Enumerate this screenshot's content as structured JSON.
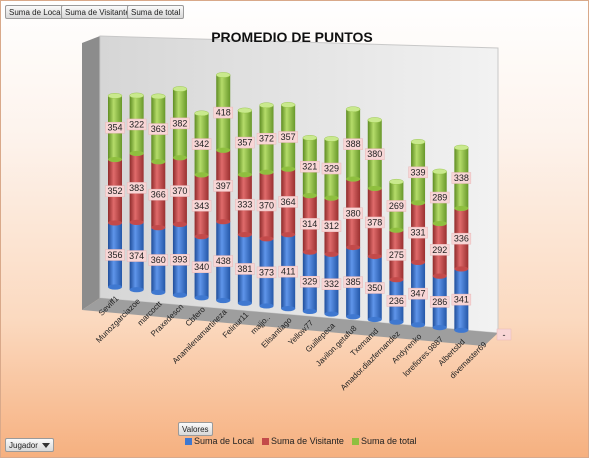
{
  "top_fields": [
    {
      "label": "Suma de Local"
    },
    {
      "label": "Suma de Visitante"
    },
    {
      "label": "Suma de total"
    }
  ],
  "values_button": "Valores",
  "axis_filter": {
    "label": "Jugador"
  },
  "chart_data": {
    "type": "bar",
    "stacked": true,
    "three_d": true,
    "title": "PROMEDIO DE PUNTOS",
    "categories": [
      "Seviff1",
      "Munozgarciazoe",
      "marcoctt",
      "Praxedescn",
      "Cbfero",
      "Anamilenamartineza",
      "Felinur11",
      "majjo..",
      "Elisantiago",
      "Yellow77",
      "Guillepeca",
      "Javilon.getafu8",
      "Txemamd",
      "Amador.diazfernandez",
      "Andyrenko",
      "lorefiores.9887",
      "Albertsbd",
      "divemaster69"
    ],
    "series": [
      {
        "name": "Suma de Local",
        "color": "#3f78d0",
        "values": [
          356,
          374,
          360,
          393,
          340,
          438,
          381,
          373,
          411,
          329,
          332,
          385,
          350,
          236,
          347,
          286,
          341,
          null
        ]
      },
      {
        "name": "Suma de Visitante",
        "color": "#c34a4a",
        "values": [
          352,
          383,
          366,
          370,
          343,
          397,
          333,
          370,
          364,
          314,
          312,
          380,
          378,
          275,
          331,
          292,
          336,
          null
        ]
      },
      {
        "name": "Suma de total",
        "color": "#8fbf3f",
        "values": [
          354,
          322,
          363,
          382,
          342,
          418,
          357,
          372,
          357,
          321,
          329,
          388,
          380,
          269,
          339,
          289,
          338,
          null
        ]
      }
    ],
    "empty_label": "-",
    "legend_position": "bottom",
    "grid": false
  }
}
